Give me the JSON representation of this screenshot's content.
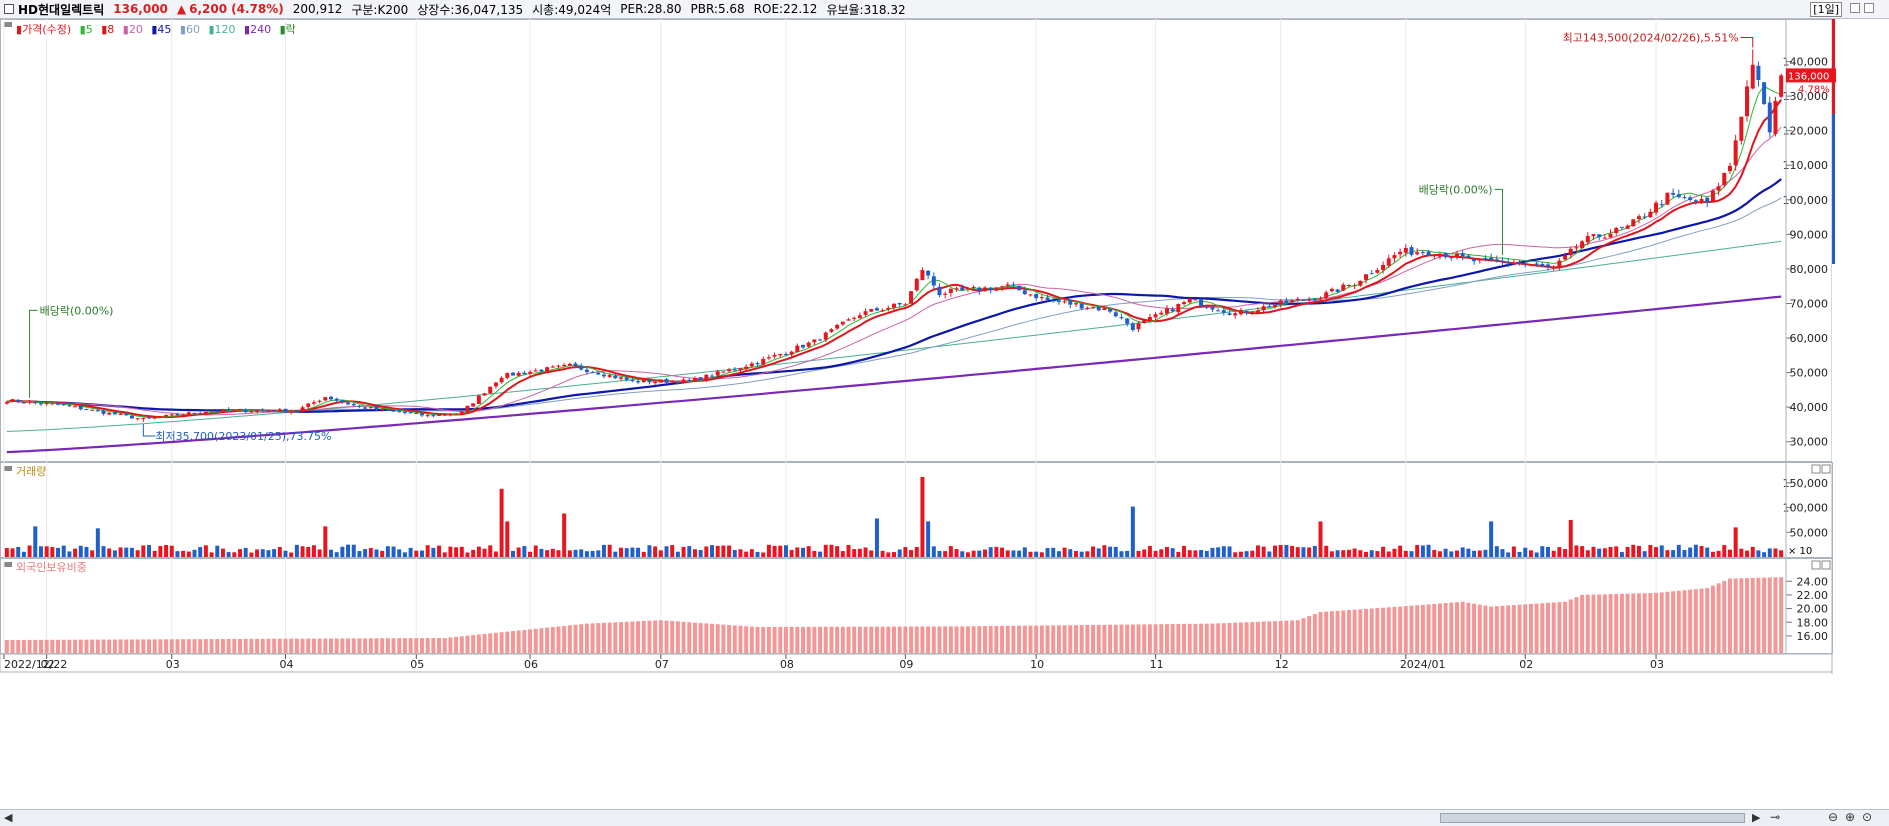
{
  "header": {
    "stock_name": "HD현대일렉트릭",
    "price": "136,000",
    "change_arrow": "▲",
    "change": "6,200",
    "change_pct": "(4.78%)",
    "volume": "200,912",
    "market": "구분:K200",
    "listed_shares": "상장수:36,047,135",
    "market_cap": "시총:49,024억",
    "per": "PER:28.80",
    "pbr": "PBR:5.68",
    "roe": "ROE:22.12",
    "retention": "유보율:318.32",
    "period": "[1일]"
  },
  "legend": {
    "price_label": "가격(수정)",
    "ma_5": "5",
    "ma_8": "8",
    "ma_20": "20",
    "ma_45": "45",
    "ma_60": "60",
    "ma_120": "120",
    "ma_240": "240",
    "ex_div": "락"
  },
  "colors": {
    "up": "#e8141e",
    "down": "#1f5fc9",
    "ma5": "#2fb52f",
    "ma8": "#e0151c",
    "ma20": "#cc62a6",
    "ma45": "#0d17a8",
    "ma60": "#7f9fc6",
    "ma120": "#48b094",
    "ma240": "#7a28b8",
    "foreign": "#f59696"
  },
  "annotations": {
    "high": "최고143,500(2024/02/26),5.51%",
    "low": "최저35,700(2023/01/25),73.75%",
    "ex_div_1": "배당락(0.00%)",
    "ex_div_2": "배당락(0.00%)",
    "current_price": "136,000",
    "current_pct": "4.78%"
  },
  "panels": {
    "volume_title": "거래량",
    "volume_unit": "× 10",
    "foreign_title": "외국인보유비중"
  },
  "chart_data": [
    {
      "type": "candlestick",
      "title": "",
      "x_start": "2022/12/22",
      "x_end": "2024/03/04",
      "ylim": [
        25000,
        150000
      ],
      "y_ticks": [
        30000,
        40000,
        50000,
        60000,
        70000,
        80000,
        90000,
        100000,
        110000,
        120000,
        130000,
        140000
      ],
      "y_tick_labels": [
        "30,000",
        "40,000",
        "50,000",
        "60,000",
        "70,000",
        "80,000",
        "90,000",
        "100,000",
        "110,000",
        "120,000",
        "130,000",
        "140,000"
      ],
      "x_tick_labels": [
        "2022/12/22",
        "02",
        "03",
        "04",
        "05",
        "06",
        "07",
        "08",
        "09",
        "10",
        "11",
        "12",
        "2024/01",
        "02",
        "03"
      ],
      "close_keyframes": [
        [
          "2022/12/22",
          42000
        ],
        [
          "2023/01/05",
          40500
        ],
        [
          "2023/01/25",
          36500
        ],
        [
          "2023/02/10",
          39000
        ],
        [
          "2023/03/03",
          39000
        ],
        [
          "2023/03/10",
          43000
        ],
        [
          "2023/03/20",
          40000
        ],
        [
          "2023/04/05",
          37500
        ],
        [
          "2023/04/13",
          38500
        ],
        [
          "2023/04/24",
          49000
        ],
        [
          "2023/05/10",
          52000
        ],
        [
          "2023/05/25",
          47500
        ],
        [
          "2023/06/08",
          47500
        ],
        [
          "2023/06/25",
          53000
        ],
        [
          "2023/07/10",
          59000
        ],
        [
          "2023/07/20",
          67000
        ],
        [
          "2023/08/01",
          70000
        ],
        [
          "2023/08/04",
          80000
        ],
        [
          "2023/08/09",
          73000
        ],
        [
          "2023/08/25",
          75000
        ],
        [
          "2023/09/05",
          71000
        ],
        [
          "2023/09/20",
          68000
        ],
        [
          "2023/09/26",
          63000
        ],
        [
          "2023/10/10",
          71000
        ],
        [
          "2023/10/20",
          67000
        ],
        [
          "2023/11/01",
          70000
        ],
        [
          "2023/11/10",
          72000
        ],
        [
          "2023/11/20",
          76000
        ],
        [
          "2023/11/30",
          85000
        ],
        [
          "2023/12/08",
          85000
        ],
        [
          "2023/12/20",
          82000
        ],
        [
          "2023/12/28",
          82000
        ],
        [
          "2024/01/08",
          80000
        ],
        [
          "2024/01/15",
          88000
        ],
        [
          "2024/01/25",
          92000
        ],
        [
          "2024/02/05",
          101000
        ],
        [
          "2024/02/14",
          99000
        ],
        [
          "2024/02/20",
          110000
        ],
        [
          "2024/02/26",
          140000
        ],
        [
          "2024/02/29",
          120000
        ],
        [
          "2024/03/04",
          136000
        ]
      ],
      "series": [
        {
          "name": "5",
          "end": 130500
        },
        {
          "name": "8",
          "end": 129000
        },
        {
          "name": "20",
          "end": 121000
        },
        {
          "name": "45",
          "end": 106000
        },
        {
          "name": "60",
          "end": 100500
        },
        {
          "name": "120",
          "end": 88000
        },
        {
          "name": "240",
          "end": 72000
        }
      ],
      "high": {
        "date": "2024/02/26",
        "value": 143500
      },
      "low": {
        "date": "2023/01/25",
        "value": 35700
      },
      "last": {
        "date": "2024/03/04",
        "close": 136000,
        "change_pct": 4.78
      }
    },
    {
      "type": "bar",
      "title": "거래량",
      "unit": "× 10",
      "ylim": [
        0,
        170000
      ],
      "y_ticks": [
        50000,
        100000,
        150000
      ],
      "y_tick_labels": [
        "50,000",
        "100,000",
        "150,000"
      ],
      "spikes": [
        [
          "2022/12/29",
          62000
        ],
        [
          "2023/01/13",
          58000
        ],
        [
          "2023/03/10",
          62000
        ],
        [
          "2023/04/24",
          138000
        ],
        [
          "2023/04/25",
          72000
        ],
        [
          "2023/05/09",
          88000
        ],
        [
          "2023/07/25",
          78000
        ],
        [
          "2023/08/04",
          162000
        ],
        [
          "2023/08/07",
          72000
        ],
        [
          "2023/09/26",
          102000
        ],
        [
          "2023/11/10",
          72000
        ],
        [
          "2023/12/22",
          72000
        ],
        [
          "2024/01/11",
          75000
        ],
        [
          "2024/02/21",
          60000
        ]
      ]
    },
    {
      "type": "bar",
      "title": "외국인보유비중",
      "ylim": [
        13.5,
        25.5
      ],
      "y_ticks": [
        16,
        18,
        20,
        22,
        24
      ],
      "y_tick_labels": [
        "16.00",
        "18.00",
        "20.00",
        "22.00",
        "24.00"
      ],
      "keyframes": [
        [
          "2022/12/22",
          15.4
        ],
        [
          "2023/04/10",
          15.7
        ],
        [
          "2023/05/15",
          17.8
        ],
        [
          "2023/06/01",
          18.3
        ],
        [
          "2023/06/25",
          17.3
        ],
        [
          "2023/08/15",
          17.4
        ],
        [
          "2023/10/15",
          17.8
        ],
        [
          "2023/11/06",
          18.3
        ],
        [
          "2023/11/10",
          19.5
        ],
        [
          "2023/11/30",
          20.3
        ],
        [
          "2023/12/15",
          21.0
        ],
        [
          "2023/12/22",
          20.3
        ],
        [
          "2024/01/10",
          21.0
        ],
        [
          "2024/01/15",
          22.0
        ],
        [
          "2024/02/01",
          22.3
        ],
        [
          "2024/02/14",
          23.0
        ],
        [
          "2024/02/20",
          24.4
        ],
        [
          "2024/03/04",
          24.6
        ]
      ]
    }
  ]
}
